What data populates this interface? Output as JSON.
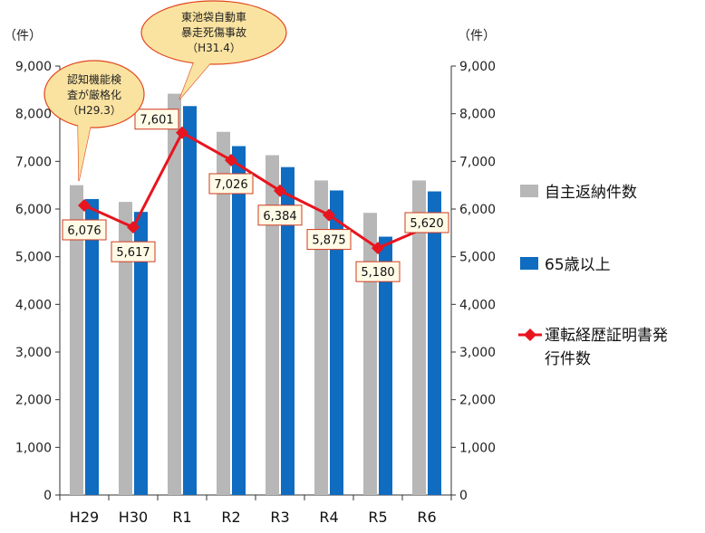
{
  "chart_data": {
    "type": "bar",
    "categories": [
      "H29",
      "H30",
      "R1",
      "R2",
      "R3",
      "R4",
      "R5",
      "R6"
    ],
    "series": [
      {
        "name": "自主返納件数",
        "kind": "bar",
        "color": "#b7b7b7",
        "values": [
          6500,
          6150,
          8420,
          7620,
          7130,
          6600,
          5920,
          6600
        ]
      },
      {
        "name": "65歳以上",
        "kind": "bar",
        "color": "#0f6cc0",
        "values": [
          6210,
          5940,
          8160,
          7320,
          6880,
          6390,
          5420,
          6370
        ]
      },
      {
        "name": "運転経歴証明書発行件数",
        "name_lines": [
          "運転経歴証明書発",
          "行件数"
        ],
        "kind": "line",
        "color": "#e8141e",
        "values": [
          6076,
          5617,
          7601,
          7026,
          6384,
          5875,
          5180,
          5620
        ],
        "labels": [
          "6,076",
          "5,617",
          "7,601",
          "7,026",
          "6,384",
          "5,875",
          "5,180",
          "5,620"
        ]
      }
    ],
    "ylim": [
      0,
      9000
    ],
    "yticks": [
      0,
      1000,
      2000,
      3000,
      4000,
      5000,
      6000,
      7000,
      8000,
      9000
    ],
    "ytick_labels": [
      "0",
      "1,000",
      "2,000",
      "3,000",
      "4,000",
      "5,000",
      "6,000",
      "7,000",
      "8,000",
      "9,000"
    ],
    "left_unit": "（件）",
    "right_unit": "（件）",
    "legend_position": "right",
    "grid": false,
    "annotations": [
      {
        "category": "H29",
        "lines": [
          "認知機能検",
          "査が厳格化",
          "（H29.3）"
        ]
      },
      {
        "category": "R1",
        "lines": [
          "東池袋自動車",
          "暴走死傷事故",
          "（H31.4）"
        ]
      }
    ]
  }
}
